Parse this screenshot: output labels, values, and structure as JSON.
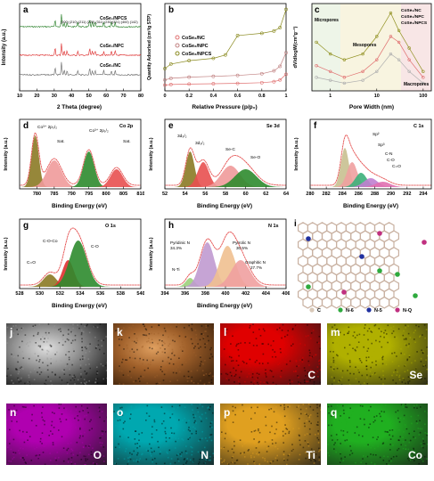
{
  "chart_data": [
    {
      "id": "a",
      "type": "line",
      "xlabel": "2 Theta (degree)",
      "ylabel": "Intensity (a.u.)",
      "xlim": [
        10,
        80
      ],
      "xticks": [
        10,
        20,
        30,
        40,
        50,
        60,
        70,
        80
      ],
      "series": [
        {
          "name": "CoSe₂/NPCS",
          "color": "#3a8a3a",
          "peaks": [
            30.5,
            34.2,
            35.8,
            37.4,
            43.6,
            50.5,
            52.0,
            53.6,
            58.6,
            63.0,
            65.2
          ]
        },
        {
          "name": "CoSe₂/NPC",
          "color": "#e04040",
          "peaks": [
            30.5,
            34.2,
            35.8,
            37.4,
            43.6,
            50.5,
            52.0,
            53.6,
            58.6,
            63.0,
            65.2
          ]
        },
        {
          "name": "CoSe₂/NC",
          "color": "#777777",
          "peaks": [
            30.5,
            34.2,
            35.8,
            37.4,
            43.6,
            50.5,
            52.0,
            53.6,
            58.6,
            63.0,
            65.2
          ]
        }
      ],
      "annotations": [
        "(200)",
        "(210)",
        "(211)",
        "(220)",
        "(311)",
        "(230)",
        "(321)",
        "(400)",
        "(142)"
      ]
    },
    {
      "id": "b",
      "type": "line",
      "xlabel": "Relative Pressure (p/p₀)",
      "ylabel": "Quantity Adsorbed (cm³/g STP)",
      "xlim": [
        0.0,
        1.0
      ],
      "xticks": [
        0.0,
        0.2,
        0.4,
        0.6,
        0.8,
        1.0
      ],
      "series": [
        {
          "name": "CoSe₂/NC",
          "color": "#e07070",
          "x": [
            0.0,
            0.05,
            0.2,
            0.4,
            0.6,
            0.8,
            0.9,
            0.95,
            1.0
          ],
          "y": [
            35,
            40,
            44,
            47,
            50,
            56,
            65,
            80,
            130
          ]
        },
        {
          "name": "CoSe₂/NPC",
          "color": "#c08080",
          "x": [
            0.0,
            0.05,
            0.2,
            0.4,
            0.6,
            0.8,
            0.9,
            0.95,
            1.0
          ],
          "y": [
            80,
            95,
            105,
            112,
            120,
            135,
            160,
            200,
            320
          ]
        },
        {
          "name": "CoSe₂/NPCS",
          "color": "#8a8a20",
          "x": [
            0.0,
            0.05,
            0.2,
            0.4,
            0.5,
            0.6,
            0.8,
            0.9,
            0.95,
            1.0
          ],
          "y": [
            180,
            220,
            250,
            270,
            300,
            470,
            490,
            510,
            540,
            700
          ]
        }
      ]
    },
    {
      "id": "c",
      "type": "line",
      "xlabel": "Pore Width (nm)",
      "ylabel": "dV/dlogW(cm³g⁻¹)",
      "xscale": "log",
      "xticks": [
        1,
        10,
        100
      ],
      "regions": [
        "Micropores",
        "Mesopores",
        "Macropores"
      ],
      "series": [
        {
          "name": "CoSe₂/NC",
          "color": "#b0b0b0",
          "x": [
            0.5,
            1,
            2,
            5,
            10,
            20,
            30,
            50,
            100
          ],
          "y": [
            0.2,
            0.15,
            0.1,
            0.15,
            0.3,
            0.6,
            0.5,
            0.3,
            0.1
          ]
        },
        {
          "name": "CoSe₂/NPC",
          "color": "#e07070",
          "x": [
            0.5,
            1,
            2,
            5,
            10,
            20,
            30,
            50,
            100
          ],
          "y": [
            0.4,
            0.3,
            0.2,
            0.3,
            0.5,
            0.9,
            0.8,
            0.5,
            0.2
          ]
        },
        {
          "name": "CoSe₂/NPCS",
          "color": "#909020",
          "x": [
            0.5,
            1,
            2,
            5,
            10,
            20,
            30,
            50,
            100
          ],
          "y": [
            0.8,
            0.6,
            0.5,
            0.6,
            0.9,
            1.3,
            1.0,
            0.7,
            0.3
          ]
        }
      ]
    },
    {
      "id": "d",
      "type": "area",
      "title": "Co 2p",
      "xlabel": "Binding Energy (eV)",
      "ylabel": "Intensity (a.u.)",
      "xlim": [
        775,
        810
      ],
      "xticks": [
        780,
        785,
        790,
        795,
        800,
        805,
        810
      ],
      "peaks": [
        {
          "label": "Co³⁺ 2p₃/₂",
          "center": 779.5,
          "color": "#8b7a25"
        },
        {
          "label": "Sat.",
          "center": 785,
          "color": "#f09a9a"
        },
        {
          "label": "Co³⁺ 2p₁/₂",
          "center": 795,
          "color": "#2e8b2e"
        },
        {
          "label": "Sat.",
          "center": 803,
          "color": "#e85050"
        }
      ]
    },
    {
      "id": "e",
      "type": "area",
      "title": "Se 3d",
      "xlabel": "Binding Energy (eV)",
      "ylabel": "Intensity (a.u.)",
      "xlim": [
        52,
        64
      ],
      "xticks": [
        52,
        54,
        56,
        58,
        60,
        62,
        64
      ],
      "peaks": [
        {
          "label": "3d₅/₂",
          "center": 54.5,
          "color": "#8b7a25"
        },
        {
          "label": "3d₃/₂",
          "center": 55.8,
          "color": "#e85050"
        },
        {
          "label": "Se-C",
          "center": 58.5,
          "color": "#f09a9a"
        },
        {
          "label": "Se-O",
          "center": 60,
          "color": "#2e8b2e"
        }
      ]
    },
    {
      "id": "f",
      "type": "area",
      "title": "C 1s",
      "xlabel": "Binding Energy (eV)",
      "ylabel": "Intensity (a.u.)",
      "xlim": [
        280,
        295
      ],
      "xticks": [
        280,
        282,
        284,
        286,
        288,
        290,
        292,
        294
      ],
      "peaks": [
        {
          "label": "Sp²",
          "center": 284.3,
          "color": "#c8c090"
        },
        {
          "label": "Sp³",
          "center": 285.2,
          "color": "#f0a0a0"
        },
        {
          "label": "C-N",
          "center": 286.3,
          "color": "#3cb07a"
        },
        {
          "label": "C-O",
          "center": 287.5,
          "color": "#c080d0"
        },
        {
          "label": "C=O",
          "center": 289,
          "color": "#e070b0"
        }
      ]
    },
    {
      "id": "g",
      "type": "area",
      "title": "O 1s",
      "xlabel": "Binding Energy (eV)",
      "ylabel": "Intensity (a.u.)",
      "xlim": [
        528,
        540
      ],
      "xticks": [
        528,
        530,
        532,
        534,
        536,
        538,
        540
      ],
      "peaks": [
        {
          "label": "C=O",
          "center": 531,
          "color": "#8b7a25"
        },
        {
          "label": "C-O-Co",
          "center": 532.8,
          "color": "#e03030"
        },
        {
          "label": "C-O",
          "center": 533.8,
          "color": "#2e8b2e"
        }
      ]
    },
    {
      "id": "h",
      "type": "area",
      "title": "N 1s",
      "xlabel": "Binding Energy (eV)",
      "ylabel": "Intensity (a.u.)",
      "xlim": [
        394,
        406
      ],
      "xticks": [
        394,
        396,
        398,
        400,
        402,
        404,
        406
      ],
      "peaks": [
        {
          "label": "N-Ti",
          "center": 396.5,
          "color": "#9cd07a"
        },
        {
          "label": "Pyridinic N 34.3%",
          "center": 398.2,
          "color": "#c09ad0"
        },
        {
          "label": "Pyrrolic N 30.5%",
          "center": 400.2,
          "color": "#f0c090"
        },
        {
          "label": "Graphitic N 27.7%",
          "center": 401.5,
          "color": "#f0a0a0"
        }
      ]
    }
  ],
  "labels": {
    "a": "a",
    "b": "b",
    "c": "c",
    "d": "d",
    "e": "e",
    "f": "f",
    "g": "g",
    "h": "h",
    "i": "i"
  },
  "text": {
    "c_micro": "Micropores",
    "c_meso": "Mesopores",
    "c_macro": "Macropores",
    "a_ann": "(200)  (210) (211)  (220)  (311) (230)(321)  (400)  (142)",
    "d_co3": "Co³⁺ 2p₃/₂",
    "d_sat1": "Sat.",
    "d_co12": "Co³⁺ 2p₁/₂",
    "d_sat2": "Sat.",
    "e_m52": "3d₅/₂",
    "e_m32": "3d₃/₂",
    "e_sec": "Se-C",
    "e_seo": "Se-O",
    "f_sp2": "Sp²",
    "f_sp3": "Sp³",
    "f_cn": "C-N",
    "f_co": "C-O",
    "f_c2o": "C=O",
    "g_c2o": "C=O",
    "g_coco": "C-O-Co",
    "g_co": "C-O",
    "h_pyridinic": "Pyridinic N",
    "h_pyridinic_pct": "34.3%",
    "h_pyrrolic": "Pyrrolic N",
    "h_pyrrolic_pct": "30.5%",
    "h_graphitic": "Graphitic N",
    "h_graphitic_pct": "27.7%",
    "h_nti": "N-Ti"
  },
  "legend_i": [
    {
      "label": "C",
      "color": "#d8c8b8"
    },
    {
      "label": "N-6",
      "color": "#2eaa3e"
    },
    {
      "label": "N-5",
      "color": "#2030a0"
    },
    {
      "label": "N-Q",
      "color": "#c03080"
    }
  ],
  "maps": [
    {
      "label": "j",
      "element": ""
    },
    {
      "label": "k",
      "element": ""
    },
    {
      "label": "l",
      "element": "C"
    },
    {
      "label": "m",
      "element": "Se"
    },
    {
      "label": "n",
      "element": "O"
    },
    {
      "label": "o",
      "element": "N"
    },
    {
      "label": "p",
      "element": "Ti"
    },
    {
      "label": "q",
      "element": "Co"
    }
  ],
  "colors": {
    "map_j": "#9a9a9a",
    "map_k": "#a0602a",
    "map_l": "#e00000",
    "map_m": "#b0b000",
    "map_n": "#b000b0",
    "map_o": "#00a8b0",
    "map_p": "#e0a020",
    "map_q": "#20b020"
  }
}
